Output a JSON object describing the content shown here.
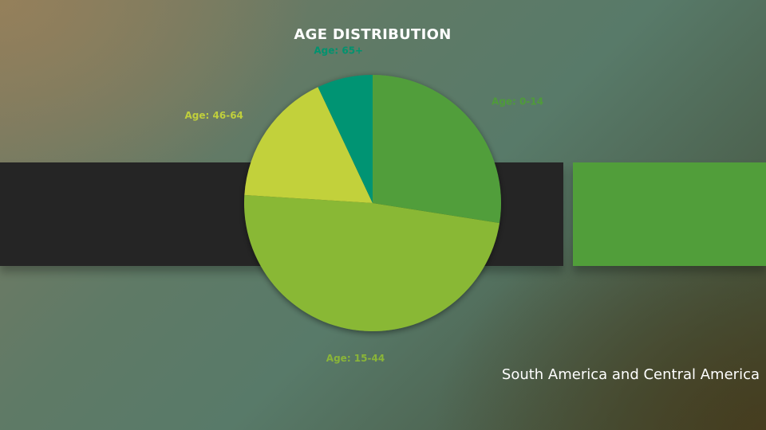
{
  "slide": {
    "caption": "South America and Central America"
  },
  "chart_data": {
    "type": "pie",
    "title": "AGE DISTRIBUTION",
    "categories": [
      "Age: 0-14",
      "Age: 15-44",
      "Age: 46-64",
      "Age: 65+"
    ],
    "values": [
      27.5,
      48.5,
      17,
      7
    ],
    "colors": [
      "#519e3a",
      "#89b834",
      "#c2d13a",
      "#009473"
    ],
    "label_colors": [
      "#4f9b3a",
      "#8ab538",
      "#c0cf3c",
      "#00936f"
    ],
    "start_angle_deg": 0,
    "direction": "clockwise",
    "legend": "none"
  }
}
